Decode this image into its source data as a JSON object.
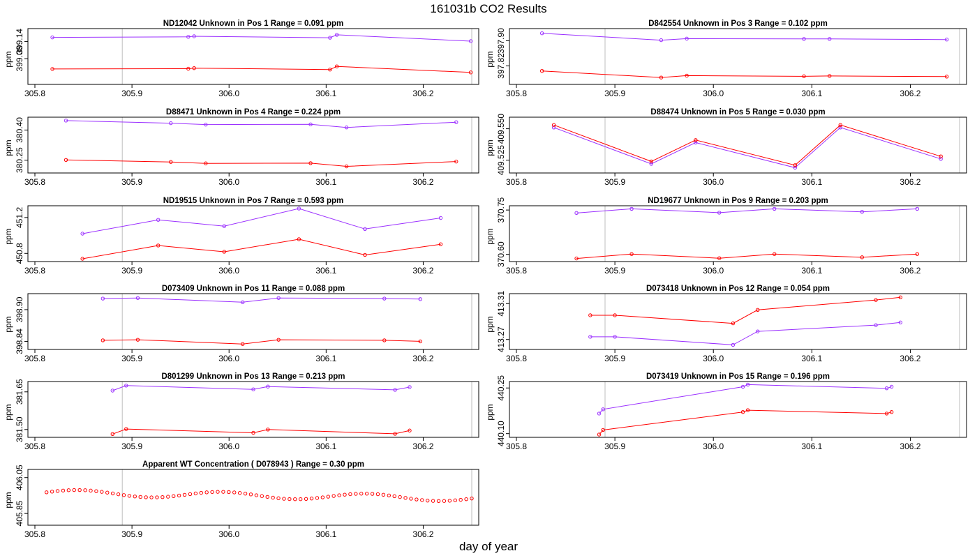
{
  "title": "161031b  CO2 Results",
  "xlabel": "day of year",
  "colors": {
    "series_a": "#9b30ff",
    "series_b": "#ff0000",
    "vline": "#bebebe",
    "axis": "#000000"
  },
  "chart_data": [
    {
      "type": "line",
      "title": "ND12042    Unknown in Pos 1         Range =  0.091 ppm",
      "ylabel": "ppm",
      "xlim": [
        305.8,
        306.25
      ],
      "ylim": [
        399.0,
        399.175
      ],
      "xticks": [
        "305.8",
        "305.9",
        "306.0",
        "306.1",
        "306.2"
      ],
      "yticks": [
        "399.08",
        "399.14"
      ],
      "vlines": [
        305.89,
        306.25
      ],
      "series": [
        {
          "name": "purple",
          "x": [
            305.818,
            305.958,
            305.964,
            306.104,
            306.111,
            306.249
          ],
          "y": [
            399.154,
            399.156,
            399.158,
            399.153,
            399.163,
            399.141
          ]
        },
        {
          "name": "red",
          "x": [
            305.818,
            305.958,
            305.964,
            306.104,
            306.111,
            306.249
          ],
          "y": [
            399.044,
            399.045,
            399.047,
            399.042,
            399.053,
            399.032
          ]
        }
      ]
    },
    {
      "type": "line",
      "title": "D842554    Unknown in Pos 3         Range =  0.102 ppm",
      "ylabel": "ppm",
      "xlim": [
        305.8,
        306.25
      ],
      "ylim": [
        397.77,
        397.93
      ],
      "xticks": [
        "305.8",
        "305.9",
        "306.0",
        "306.1",
        "306.2"
      ],
      "yticks": [
        "397.82",
        "397.90"
      ],
      "vlines": [
        305.89,
        306.25
      ],
      "series": [
        {
          "name": "purple",
          "x": [
            305.826,
            305.947,
            305.973,
            306.092,
            306.118,
            306.237
          ],
          "y": [
            397.924,
            397.902,
            397.907,
            397.906,
            397.906,
            397.904
          ]
        },
        {
          "name": "red",
          "x": [
            305.826,
            305.947,
            305.973,
            306.092,
            306.118,
            306.237
          ],
          "y": [
            397.804,
            397.783,
            397.789,
            397.787,
            397.788,
            397.786
          ]
        }
      ]
    },
    {
      "type": "line",
      "title": "D88471    Unknown in Pos 4         Range =  0.224 ppm",
      "ylabel": "ppm",
      "xlim": [
        305.8,
        306.25
      ],
      "ylim": [
        380.2,
        380.45
      ],
      "xticks": [
        "305.8",
        "305.9",
        "306.0",
        "306.1",
        "306.2"
      ],
      "yticks": [
        "380.25",
        "380.40"
      ],
      "vlines": [
        305.89,
        306.25
      ],
      "series": [
        {
          "name": "purple",
          "x": [
            305.832,
            305.94,
            305.976,
            306.084,
            306.121,
            306.234
          ],
          "y": [
            380.447,
            380.434,
            380.427,
            380.428,
            380.413,
            380.439
          ]
        },
        {
          "name": "red",
          "x": [
            305.832,
            305.94,
            305.976,
            306.084,
            306.121,
            306.234
          ],
          "y": [
            380.251,
            380.241,
            380.234,
            380.235,
            380.219,
            380.243
          ]
        }
      ]
    },
    {
      "type": "line",
      "title": "D88474    Unknown in Pos 5         Range =  0.030 ppm",
      "ylabel": "ppm",
      "xlim": [
        305.8,
        306.25
      ],
      "ylim": [
        409.517,
        409.557
      ],
      "xticks": [
        "305.8",
        "305.9",
        "306.0",
        "306.1",
        "306.2"
      ],
      "yticks": [
        "409.525",
        "409.550"
      ],
      "vlines": [
        305.89,
        306.25
      ],
      "series": [
        {
          "name": "purple",
          "x": [
            305.838,
            305.937,
            305.982,
            306.083,
            306.129,
            306.231
          ],
          "y": [
            409.551,
            409.522,
            409.539,
            409.519,
            409.551,
            409.526
          ]
        },
        {
          "name": "red",
          "x": [
            305.838,
            305.937,
            305.982,
            306.083,
            306.129,
            306.231
          ],
          "y": [
            409.553,
            409.524,
            409.541,
            409.521,
            409.553,
            409.528
          ]
        }
      ]
    },
    {
      "type": "line",
      "title": "ND19515    Unknown in Pos 7         Range =  0.593 ppm",
      "ylabel": "ppm",
      "xlim": [
        305.8,
        306.25
      ],
      "ylim": [
        450.74,
        451.3
      ],
      "xticks": [
        "305.8",
        "305.9",
        "306.0",
        "306.1",
        "306.2"
      ],
      "yticks": [
        "450.8",
        "451.2"
      ],
      "vlines": [
        305.89,
        306.25
      ],
      "series": [
        {
          "name": "purple",
          "x": [
            305.849,
            305.927,
            305.995,
            306.072,
            306.14,
            306.218
          ],
          "y": [
            451.02,
            451.174,
            451.104,
            451.3,
            451.072,
            451.195
          ]
        },
        {
          "name": "red",
          "x": [
            305.849,
            305.927,
            305.995,
            306.072,
            306.14,
            306.218
          ],
          "y": [
            450.74,
            450.888,
            450.818,
            450.958,
            450.783,
            450.902
          ]
        }
      ]
    },
    {
      "type": "line",
      "title": "ND19677    Unknown in Pos 9         Range =  0.203 ppm",
      "ylabel": "ppm",
      "xlim": [
        305.8,
        306.25
      ],
      "ylim": [
        370.585,
        370.755
      ],
      "xticks": [
        "305.8",
        "305.9",
        "306.0",
        "306.1",
        "306.2"
      ],
      "yticks": [
        "370.60",
        "370.75"
      ],
      "vlines": [
        305.89,
        306.25
      ],
      "series": [
        {
          "name": "purple",
          "x": [
            305.861,
            305.917,
            306.006,
            306.062,
            306.151,
            306.207
          ],
          "y": [
            370.74,
            370.754,
            370.741,
            370.754,
            370.744,
            370.754
          ]
        },
        {
          "name": "red",
          "x": [
            305.861,
            305.917,
            306.006,
            306.062,
            306.151,
            306.207
          ],
          "y": [
            370.586,
            370.601,
            370.587,
            370.601,
            370.59,
            370.601
          ]
        }
      ]
    },
    {
      "type": "line",
      "title": "D073409    Unknown in Pos 11         Range =  0.088 ppm",
      "ylabel": "ppm",
      "xlim": [
        305.8,
        306.25
      ],
      "ylim": [
        398.83,
        398.925
      ],
      "xticks": [
        "305.8",
        "305.9",
        "306.0",
        "306.1",
        "306.2"
      ],
      "yticks": [
        "398.84",
        "398.90"
      ],
      "vlines": [
        305.89,
        306.25
      ],
      "series": [
        {
          "name": "purple",
          "x": [
            305.87,
            305.906,
            306.014,
            306.051,
            306.16,
            306.197
          ],
          "y": [
            398.921,
            398.922,
            398.914,
            398.922,
            398.921,
            398.92
          ]
        },
        {
          "name": "red",
          "x": [
            305.87,
            305.906,
            306.014,
            306.051,
            306.16,
            306.197
          ],
          "y": [
            398.842,
            398.843,
            398.835,
            398.843,
            398.842,
            398.84
          ]
        }
      ]
    },
    {
      "type": "line",
      "title": "D073418    Unknown in Pos 12         Range =  0.054 ppm",
      "ylabel": "ppm",
      "xlim": [
        305.8,
        306.25
      ],
      "ylim": [
        413.262,
        413.318
      ],
      "xticks": [
        "305.8",
        "305.9",
        "306.0",
        "306.1",
        "306.2"
      ],
      "yticks": [
        "413.27",
        "413.31"
      ],
      "vlines": [
        305.89,
        306.25
      ],
      "series": [
        {
          "name": "purple",
          "x": [
            305.875,
            305.9,
            306.02,
            306.045,
            306.165,
            306.19
          ],
          "y": [
            413.273,
            413.273,
            413.264,
            413.279,
            413.286,
            413.289
          ]
        },
        {
          "name": "red",
          "x": [
            305.875,
            305.9,
            306.02,
            306.045,
            306.165,
            306.19
          ],
          "y": [
            413.297,
            413.297,
            413.288,
            413.303,
            413.314,
            413.317
          ]
        }
      ]
    },
    {
      "type": "line",
      "title": "D801299    Unknown in Pos 13         Range =  0.213 ppm",
      "ylabel": "ppm",
      "xlim": [
        305.8,
        306.25
      ],
      "ylim": [
        381.48,
        381.68
      ],
      "xticks": [
        "305.8",
        "305.9",
        "306.0",
        "306.1",
        "306.2"
      ],
      "yticks": [
        "381.50",
        "381.65"
      ],
      "vlines": [
        305.89,
        306.25
      ],
      "series": [
        {
          "name": "purple",
          "x": [
            305.88,
            305.894,
            306.025,
            306.04,
            306.171,
            306.186
          ],
          "y": [
            381.655,
            381.675,
            381.66,
            381.671,
            381.658,
            381.669
          ]
        },
        {
          "name": "red",
          "x": [
            305.88,
            305.894,
            306.025,
            306.04,
            306.171,
            306.186
          ],
          "y": [
            381.482,
            381.502,
            381.487,
            381.5,
            381.483,
            381.496
          ]
        }
      ]
    },
    {
      "type": "line",
      "title": "D073419    Unknown in Pos 15         Range =  0.196 ppm",
      "ylabel": "ppm",
      "xlim": [
        305.8,
        306.25
      ],
      "ylim": [
        440.097,
        440.262
      ],
      "xticks": [
        "305.8",
        "305.9",
        "306.0",
        "306.1",
        "306.2"
      ],
      "yticks": [
        "440.10",
        "440.25"
      ],
      "vlines": [
        305.89,
        306.25
      ],
      "series": [
        {
          "name": "purple",
          "x": [
            305.884,
            305.888,
            306.03,
            306.035,
            306.176,
            306.181
          ],
          "y": [
            440.166,
            440.18,
            440.254,
            440.261,
            440.249,
            440.254
          ]
        },
        {
          "name": "red",
          "x": [
            305.884,
            305.888,
            306.03,
            306.035,
            306.176,
            306.181
          ],
          "y": [
            440.097,
            440.112,
            440.171,
            440.177,
            440.166,
            440.171
          ]
        }
      ]
    },
    {
      "type": "scatter",
      "title": "Apparent WT Concentration ( D078943 )        Range = 0.30 ppm",
      "ylabel": "ppm",
      "xlim": [
        305.8,
        306.25
      ],
      "ylim": [
        405.8,
        406.08
      ],
      "xticks": [
        "305.8",
        "305.9",
        "306.0",
        "306.1",
        "306.2"
      ],
      "yticks": [
        "405.85",
        "406.05"
      ],
      "vlines": [
        305.89,
        306.25
      ],
      "curve": {
        "x_start": 305.812,
        "x_end": 306.25,
        "count": 78,
        "base": 405.965,
        "trend": -0.03,
        "amp": 0.018,
        "period": 0.148,
        "phase": 305.845
      }
    }
  ]
}
